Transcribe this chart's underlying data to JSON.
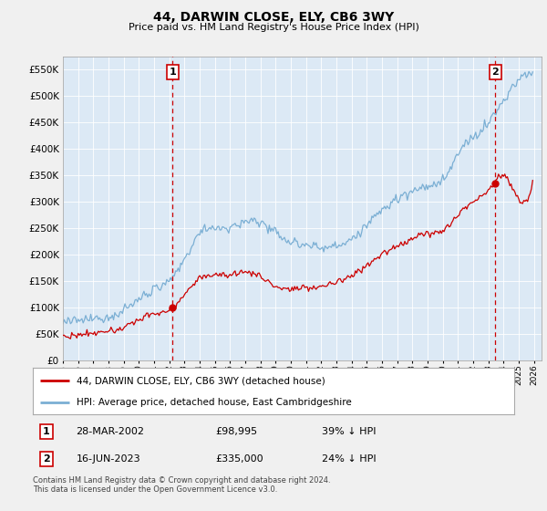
{
  "title": "44, DARWIN CLOSE, ELY, CB6 3WY",
  "subtitle": "Price paid vs. HM Land Registry's House Price Index (HPI)",
  "ytick_values": [
    0,
    50000,
    100000,
    150000,
    200000,
    250000,
    300000,
    350000,
    400000,
    450000,
    500000,
    550000
  ],
  "ytick_labels": [
    "£0",
    "£50K",
    "£100K",
    "£150K",
    "£200K",
    "£250K",
    "£300K",
    "£350K",
    "£400K",
    "£450K",
    "£500K",
    "£550K"
  ],
  "ylim": [
    0,
    575000
  ],
  "xlim_start": 1995.0,
  "xlim_end": 2026.5,
  "transaction1_year": 2002.23,
  "transaction1_price": 98995,
  "transaction2_year": 2023.46,
  "transaction2_price": 335000,
  "transaction1_date": "28-MAR-2002",
  "transaction1_amount": "£98,995",
  "transaction1_pct": "39% ↓ HPI",
  "transaction2_date": "16-JUN-2023",
  "transaction2_amount": "£335,000",
  "transaction2_pct": "24% ↓ HPI",
  "legend_line1": "44, DARWIN CLOSE, ELY, CB6 3WY (detached house)",
  "legend_line2": "HPI: Average price, detached house, East Cambridgeshire",
  "footer": "Contains HM Land Registry data © Crown copyright and database right 2024.\nThis data is licensed under the Open Government Licence v3.0.",
  "hpi_color": "#7bafd4",
  "price_color": "#cc0000",
  "bg_chart": "#dce9f5",
  "bg_outer": "#f0f0f0",
  "grid_color": "#ffffff",
  "marker_box_color": "#cc0000"
}
